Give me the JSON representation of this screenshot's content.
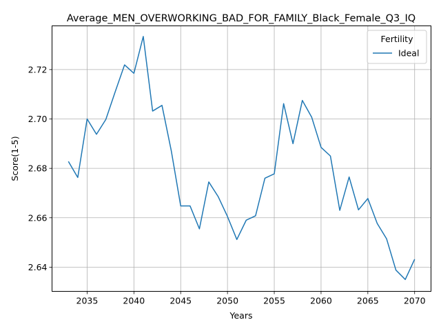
{
  "chart_data": {
    "type": "line",
    "title": "Average_MEN_OVERWORKING_BAD_FOR_FAMILY_Black_Female_Q3_IQ",
    "xlabel": "Years",
    "ylabel": "Score(1-5)",
    "xlim": [
      2031.25,
      2071.75
    ],
    "ylim": [
      2.6302,
      2.7377
    ],
    "xticks": [
      2035,
      2040,
      2045,
      2050,
      2055,
      2060,
      2065,
      2070
    ],
    "yticks": [
      2.64,
      2.66,
      2.68,
      2.7,
      2.72
    ],
    "ytick_labels": [
      "2.64",
      "2.66",
      "2.68",
      "2.70",
      "2.72"
    ],
    "grid": true,
    "legend": {
      "title": "Fertility",
      "placement": "top-right"
    },
    "series": [
      {
        "name": "Ideal",
        "color": "#1f77b4",
        "x": [
          2033,
          2034,
          2035,
          2036,
          2037,
          2038,
          2039,
          2040,
          2041,
          2042,
          2043,
          2044,
          2045,
          2046,
          2047,
          2048,
          2049,
          2050,
          2051,
          2052,
          2053,
          2054,
          2055,
          2056,
          2057,
          2058,
          2059,
          2060,
          2061,
          2062,
          2063,
          2064,
          2065,
          2066,
          2067,
          2068,
          2069,
          2070
        ],
        "y": [
          2.6828,
          2.6763,
          2.7,
          2.6938,
          2.6998,
          2.711,
          2.7219,
          2.7185,
          2.7334,
          2.7032,
          2.7055,
          2.687,
          2.6648,
          2.6648,
          2.6555,
          2.6745,
          2.6686,
          2.6605,
          2.6512,
          2.659,
          2.6608,
          2.676,
          2.6778,
          2.7062,
          2.69,
          2.7075,
          2.7007,
          2.6885,
          2.685,
          2.663,
          2.6765,
          2.6632,
          2.6678,
          2.6577,
          2.6515,
          2.6388,
          2.635,
          2.6432
        ]
      }
    ]
  }
}
